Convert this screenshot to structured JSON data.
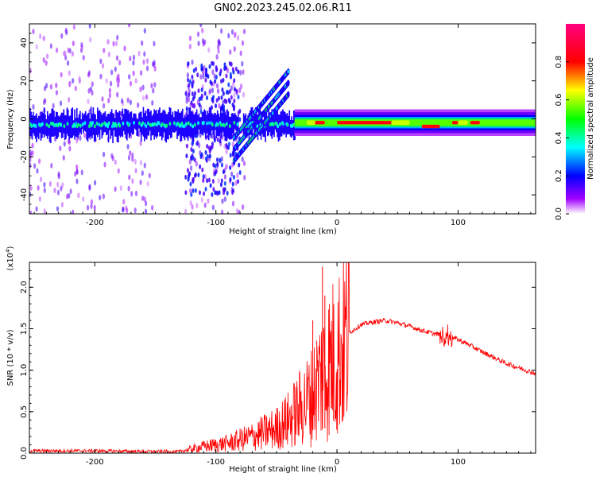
{
  "title": "GN02.2023.245.02.06.R11",
  "chart_data": [
    {
      "type": "heatmap",
      "xlabel": "Height of straight line (km)",
      "ylabel": "Frequency (Hz)",
      "xlim": [
        -254,
        164
      ],
      "ylim": [
        -50,
        50
      ],
      "xticks": [
        -200,
        -100,
        0,
        100
      ],
      "yticks": [
        -40,
        -20,
        0,
        20,
        40
      ],
      "colorbar": {
        "label": "Normalized spectral amplitude",
        "range": [
          0,
          1
        ],
        "ticks": [
          "0.0",
          "0.2",
          "0.4",
          "0.6",
          "0.8"
        ],
        "colors": [
          "#ffffff",
          "#a000ff",
          "#0000ff",
          "#00ffff",
          "#00ff00",
          "#ffff00",
          "#ff0000",
          "#ff0080"
        ]
      },
      "features": [
        {
          "x_range": [
            -254,
            -35
          ],
          "freq_center": -3,
          "peak_amplitude": 0.45,
          "description_level": "fragmented"
        },
        {
          "x_range": [
            -85,
            -40
          ],
          "freq_start": -10,
          "freq_end": 25,
          "peak_amplitude": 0.5
        },
        {
          "x_range": [
            -35,
            164
          ],
          "freq_center": -2,
          "peak_amplitude": 0.9
        }
      ]
    },
    {
      "type": "line",
      "xlabel": "Height of straight line (km)",
      "ylabel": "SNR (10 * v/v)",
      "y_multiplier": "(x10^4)",
      "xlim": [
        -254,
        164
      ],
      "ylim": [
        0,
        2.3
      ],
      "xticks": [
        -200,
        -100,
        0,
        100
      ],
      "yticks": [
        "0.0",
        "0.5",
        "1.0",
        "1.5",
        "2.0"
      ],
      "color": "#ff0000",
      "series": [
        {
          "x": [
            -254,
            -200,
            -150,
            -130,
            -110,
            -90,
            -70,
            -50,
            -40,
            -30,
            -20,
            -15,
            -10,
            -5,
            0,
            5,
            10,
            20,
            30,
            40,
            50,
            60,
            70,
            80,
            90,
            100,
            110,
            120,
            130,
            140,
            150,
            164
          ],
          "values": [
            0.02,
            0.02,
            0.01,
            0.02,
            0.08,
            0.12,
            0.2,
            0.3,
            0.4,
            0.55,
            0.7,
            0.9,
            1.0,
            1.1,
            1.2,
            1.3,
            1.45,
            1.55,
            1.58,
            1.6,
            1.57,
            1.53,
            1.48,
            1.44,
            1.42,
            1.37,
            1.3,
            1.22,
            1.15,
            1.08,
            1.03,
            0.96
          ]
        }
      ],
      "spikes": [
        {
          "x": -12,
          "y": 2.25
        },
        {
          "x": -10,
          "y": 1.9
        },
        {
          "x": -20,
          "y": 1.6
        }
      ]
    }
  ]
}
